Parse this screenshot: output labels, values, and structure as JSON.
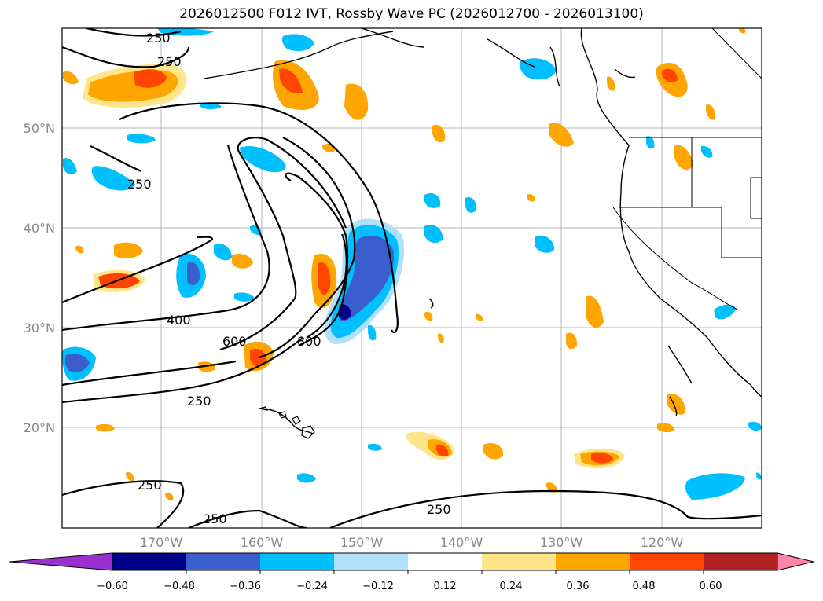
{
  "title": "2026012500 F012 IVT, Rossby Wave PC (2026012700 - 2026013100)",
  "lat_labels": [
    "50°N",
    "40°N",
    "30°N",
    "20°N"
  ],
  "lon_labels": [
    "170°W",
    "160°W",
    "150°W",
    "140°W",
    "130°W",
    "120°W"
  ],
  "contour_labels": [
    "250",
    "250",
    "250",
    "400",
    "600",
    "800",
    "250",
    "250",
    "250",
    "250"
  ],
  "colorbar": {
    "ticks": [
      "−0.60",
      "−0.48",
      "−0.36",
      "−0.24",
      "−0.12",
      "0.12",
      "0.24",
      "0.36",
      "0.48",
      "0.60"
    ],
    "colors": [
      "#9b30d0",
      "#00008b",
      "#3a5fcd",
      "#00bfff",
      "#b0e0fa",
      "#ffffff",
      "#ffe58a",
      "#ffa500",
      "#ff4500",
      "#b22222",
      "#ff85a8"
    ]
  }
}
